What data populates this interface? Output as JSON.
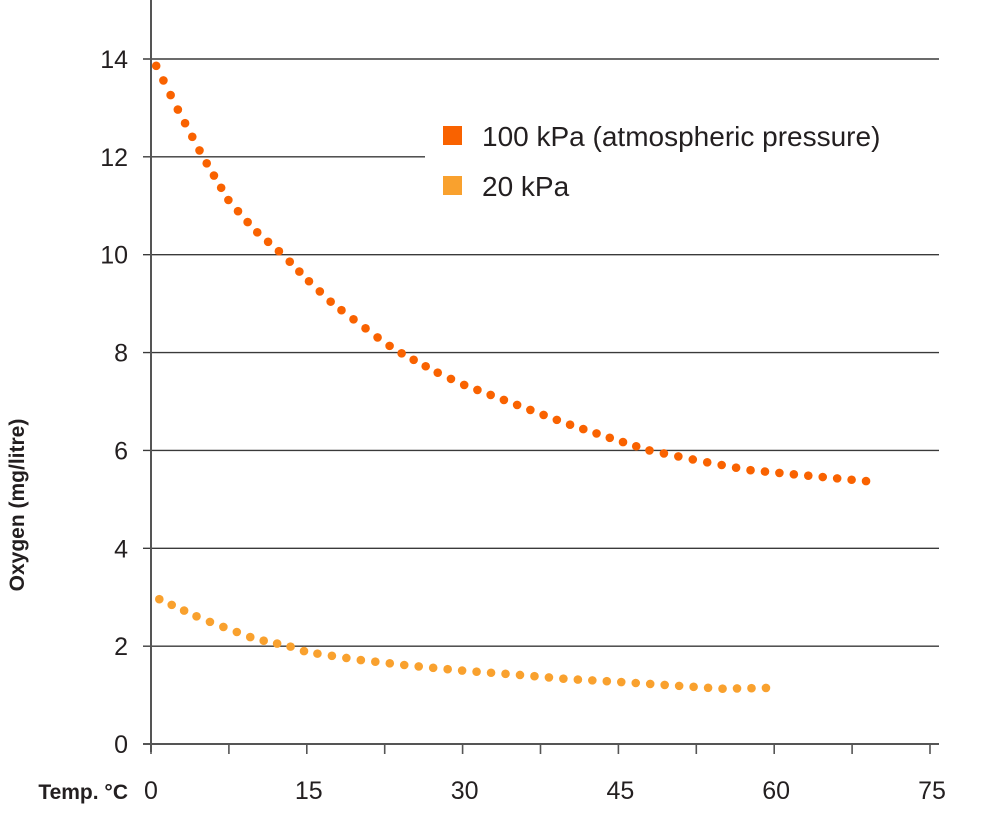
{
  "chart_data": {
    "type": "scatter",
    "style": "dotted-curve",
    "title": "",
    "xlabel": "Temp. °C",
    "ylabel": "Oxygen (mg/litre)",
    "xlim": [
      0,
      75
    ],
    "ylim": [
      0,
      14
    ],
    "xticks": [
      0,
      15,
      30,
      45,
      60,
      75
    ],
    "xminor_ticks": [
      7.5,
      22.5,
      37.5,
      52.5,
      67.5
    ],
    "yticks": [
      0,
      2,
      4,
      6,
      8,
      10,
      12,
      14
    ],
    "grid": "horizontal",
    "legend_placement": "top-right",
    "series": [
      {
        "name": "100 kPa (atmospheric pressure)",
        "color": "#f96200",
        "x": [
          0.5,
          2.5,
          5,
          7.5,
          10,
          12.7,
          15,
          17.5,
          20,
          22.5,
          24,
          27.5,
          30,
          35,
          40,
          45,
          48,
          52.5,
          57.5,
          62.5,
          67.5,
          70
        ],
        "y": [
          13.86,
          13.0,
          12.0,
          11.1,
          10.5,
          10.0,
          9.5,
          9.0,
          8.6,
          8.2,
          8.0,
          7.6,
          7.35,
          6.95,
          6.55,
          6.2,
          6.0,
          5.8,
          5.6,
          5.5,
          5.4,
          5.35
        ]
      },
      {
        "name": "20 kPa",
        "color": "#f9a12e",
        "x": [
          0.8,
          5,
          10,
          13.3,
          15,
          20,
          25,
          30,
          35,
          40,
          45,
          50,
          55,
          60.5
        ],
        "y": [
          2.96,
          2.55,
          2.15,
          2.0,
          1.88,
          1.72,
          1.6,
          1.5,
          1.42,
          1.33,
          1.27,
          1.2,
          1.13,
          1.15
        ]
      }
    ]
  }
}
